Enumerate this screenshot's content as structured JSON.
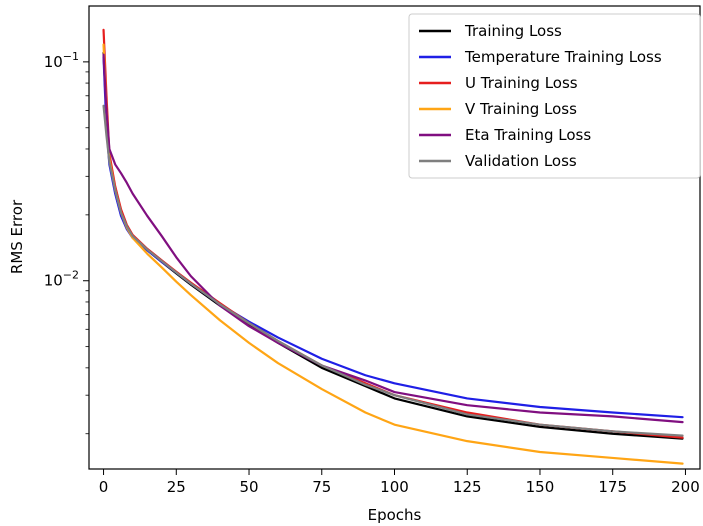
{
  "chart_data": {
    "type": "line",
    "xlabel": "Epochs",
    "ylabel": "RMS Error",
    "yscale": "log",
    "xlim": [
      -5,
      205
    ],
    "ylim": [
      0.00138,
      0.18
    ],
    "xticks": [
      0,
      25,
      50,
      75,
      100,
      125,
      150,
      175,
      200
    ],
    "yticks": [
      {
        "value": 0.01,
        "base": "10",
        "exp": "−2"
      },
      {
        "value": 0.1,
        "base": "10",
        "exp": "−1"
      }
    ],
    "grid": false,
    "legend_position": "top-right",
    "series": [
      {
        "name": "Training Loss",
        "color": "#000000",
        "points": [
          [
            0,
            0.11
          ],
          [
            1,
            0.055
          ],
          [
            2,
            0.036
          ],
          [
            4,
            0.026
          ],
          [
            6,
            0.0205
          ],
          [
            8,
            0.0177
          ],
          [
            10,
            0.016
          ],
          [
            15,
            0.0138
          ],
          [
            20,
            0.0122
          ],
          [
            25,
            0.0108
          ],
          [
            30,
            0.0096
          ],
          [
            40,
            0.0077
          ],
          [
            50,
            0.0063
          ],
          [
            60,
            0.0052
          ],
          [
            75,
            0.004
          ],
          [
            90,
            0.0033
          ],
          [
            100,
            0.0029
          ],
          [
            125,
            0.0024
          ],
          [
            150,
            0.00215
          ],
          [
            175,
            0.002
          ],
          [
            199,
            0.0019
          ]
        ]
      },
      {
        "name": "Temperature Training Loss",
        "color": "#1f1fe6",
        "points": [
          [
            0,
            0.105
          ],
          [
            1,
            0.05
          ],
          [
            2,
            0.034
          ],
          [
            4,
            0.025
          ],
          [
            6,
            0.0198
          ],
          [
            8,
            0.0172
          ],
          [
            10,
            0.0157
          ],
          [
            15,
            0.0138
          ],
          [
            20,
            0.0122
          ],
          [
            25,
            0.0109
          ],
          [
            30,
            0.0097
          ],
          [
            40,
            0.0078
          ],
          [
            50,
            0.0065
          ],
          [
            60,
            0.0055
          ],
          [
            75,
            0.0044
          ],
          [
            90,
            0.0037
          ],
          [
            100,
            0.0034
          ],
          [
            125,
            0.0029
          ],
          [
            150,
            0.00265
          ],
          [
            175,
            0.0025
          ],
          [
            199,
            0.00238
          ]
        ]
      },
      {
        "name": "U Training Loss",
        "color": "#e61e1e",
        "points": [
          [
            0,
            0.14
          ],
          [
            1,
            0.07
          ],
          [
            2,
            0.038
          ],
          [
            4,
            0.027
          ],
          [
            6,
            0.0212
          ],
          [
            8,
            0.018
          ],
          [
            10,
            0.0162
          ],
          [
            15,
            0.014
          ],
          [
            20,
            0.0124
          ],
          [
            25,
            0.011
          ],
          [
            30,
            0.0098
          ],
          [
            40,
            0.0079
          ],
          [
            50,
            0.0064
          ],
          [
            60,
            0.0053
          ],
          [
            75,
            0.0041
          ],
          [
            90,
            0.0034
          ],
          [
            100,
            0.003
          ],
          [
            125,
            0.0025
          ],
          [
            150,
            0.0022
          ],
          [
            175,
            0.00205
          ],
          [
            199,
            0.00192
          ]
        ]
      },
      {
        "name": "V Training Loss",
        "color": "#ffa515",
        "points": [
          [
            0,
            0.12
          ],
          [
            1,
            0.06
          ],
          [
            2,
            0.036
          ],
          [
            4,
            0.026
          ],
          [
            6,
            0.0205
          ],
          [
            8,
            0.0175
          ],
          [
            10,
            0.0157
          ],
          [
            15,
            0.0133
          ],
          [
            20,
            0.0115
          ],
          [
            25,
            0.0099
          ],
          [
            30,
            0.0086
          ],
          [
            40,
            0.0066
          ],
          [
            50,
            0.0052
          ],
          [
            60,
            0.0042
          ],
          [
            75,
            0.0032
          ],
          [
            90,
            0.0025
          ],
          [
            100,
            0.0022
          ],
          [
            125,
            0.00185
          ],
          [
            150,
            0.00165
          ],
          [
            175,
            0.00155
          ],
          [
            199,
            0.00146
          ]
        ]
      },
      {
        "name": "Eta Training Loss",
        "color": "#800f80",
        "points": [
          [
            0,
            0.108
          ],
          [
            1,
            0.06
          ],
          [
            2,
            0.04
          ],
          [
            4,
            0.034
          ],
          [
            6,
            0.031
          ],
          [
            8,
            0.028
          ],
          [
            10,
            0.025
          ],
          [
            15,
            0.0198
          ],
          [
            20,
            0.016
          ],
          [
            25,
            0.0128
          ],
          [
            30,
            0.0105
          ],
          [
            40,
            0.0077
          ],
          [
            50,
            0.0062
          ],
          [
            60,
            0.0052
          ],
          [
            75,
            0.0041
          ],
          [
            90,
            0.0035
          ],
          [
            100,
            0.0031
          ],
          [
            125,
            0.0027
          ],
          [
            150,
            0.0025
          ],
          [
            175,
            0.0024
          ],
          [
            199,
            0.00226
          ]
        ]
      },
      {
        "name": "Validation Loss",
        "color": "#7f7f7f",
        "points": [
          [
            0,
            0.063
          ],
          [
            1,
            0.046
          ],
          [
            2,
            0.035
          ],
          [
            4,
            0.026
          ],
          [
            6,
            0.0205
          ],
          [
            8,
            0.0177
          ],
          [
            10,
            0.016
          ],
          [
            15,
            0.0139
          ],
          [
            20,
            0.0123
          ],
          [
            25,
            0.0109
          ],
          [
            30,
            0.0097
          ],
          [
            40,
            0.0078
          ],
          [
            50,
            0.0064
          ],
          [
            60,
            0.0053
          ],
          [
            75,
            0.0041
          ],
          [
            90,
            0.00335
          ],
          [
            100,
            0.003
          ],
          [
            125,
            0.00245
          ],
          [
            150,
            0.0022
          ],
          [
            175,
            0.00205
          ],
          [
            199,
            0.00196
          ]
        ]
      }
    ]
  }
}
